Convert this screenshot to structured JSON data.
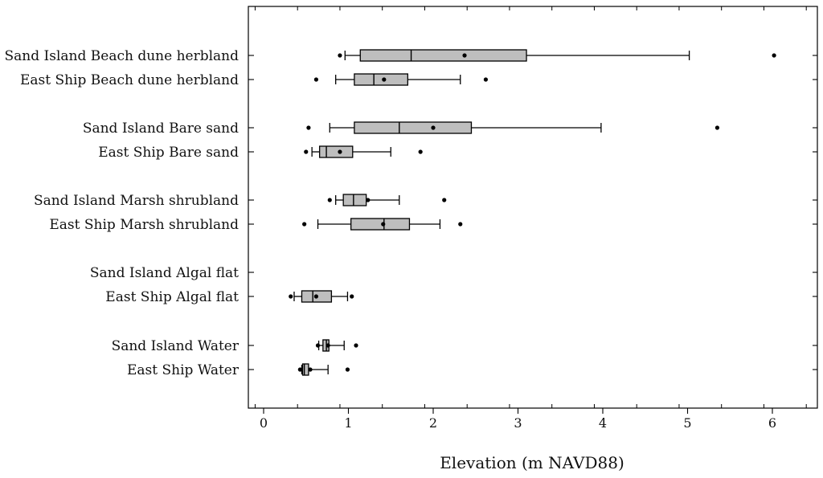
{
  "chart_data": {
    "type": "box",
    "title": "",
    "xlabel": "Elevation (m NAVD88)",
    "ylabel": "",
    "xlim": [
      -0.2,
      6.5
    ],
    "x_ticks": [
      0,
      1,
      2,
      3,
      4,
      5,
      6
    ],
    "x_tick_labels": [
      "0",
      "1",
      "2",
      "3",
      "4",
      "5",
      "6"
    ],
    "grid": false,
    "colors": {
      "box_fill": "#bebebe",
      "stroke": "#000000"
    },
    "categories": [
      {
        "label": "Sand Island Beach dune herbland",
        "box": {
          "whisker_low": 0.96,
          "q1": 1.14,
          "median": 1.74,
          "q3": 3.1,
          "whisker_high": 5.02,
          "mean": 2.37
        },
        "outliers": [
          0.9,
          6.02
        ]
      },
      {
        "label": "East Ship Beach dune herbland",
        "box": {
          "whisker_low": 0.85,
          "q1": 1.07,
          "median": 1.3,
          "q3": 1.7,
          "whisker_high": 2.32,
          "mean": 1.42
        },
        "outliers": [
          0.62,
          2.62
        ]
      },
      {
        "label": "Sand Island Bare sand",
        "box": {
          "whisker_low": 0.78,
          "q1": 1.07,
          "median": 1.6,
          "q3": 2.45,
          "whisker_high": 3.98,
          "mean": 2.0
        },
        "outliers": [
          0.53,
          5.35
        ]
      },
      {
        "label": "East Ship Bare sand",
        "box": {
          "whisker_low": 0.57,
          "q1": 0.66,
          "median": 0.74,
          "q3": 1.05,
          "whisker_high": 1.5,
          "mean": 0.9
        },
        "outliers": [
          0.5,
          1.85
        ]
      },
      {
        "label": "Sand Island Marsh shrubland",
        "box": {
          "whisker_low": 0.85,
          "q1": 0.94,
          "median": 1.06,
          "q3": 1.21,
          "whisker_high": 1.6,
          "mean": 1.23
        },
        "outliers": [
          0.78,
          2.13
        ]
      },
      {
        "label": "East Ship Marsh shrubland",
        "box": {
          "whisker_low": 0.64,
          "q1": 1.03,
          "median": 1.42,
          "q3": 1.72,
          "whisker_high": 2.08,
          "mean": 1.41
        },
        "outliers": [
          0.48,
          2.32
        ]
      },
      {
        "label": "Sand Island Algal flat",
        "box": null,
        "outliers": []
      },
      {
        "label": "East Ship Algal flat",
        "box": {
          "whisker_low": 0.36,
          "q1": 0.45,
          "median": 0.58,
          "q3": 0.8,
          "whisker_high": 0.99,
          "mean": 0.62
        },
        "outliers": [
          0.32,
          1.04
        ]
      },
      {
        "label": "Sand Island Water",
        "box": {
          "whisker_low": 0.65,
          "q1": 0.7,
          "median": 0.74,
          "q3": 0.77,
          "whisker_high": 0.95,
          "mean": 0.76
        },
        "outliers": [
          0.64,
          1.09
        ]
      },
      {
        "label": "East Ship Water",
        "box": {
          "whisker_low": 0.45,
          "q1": 0.46,
          "median": 0.48,
          "q3": 0.53,
          "whisker_high": 0.76,
          "mean": 0.55
        },
        "outliers": [
          0.43,
          0.99
        ]
      }
    ]
  }
}
